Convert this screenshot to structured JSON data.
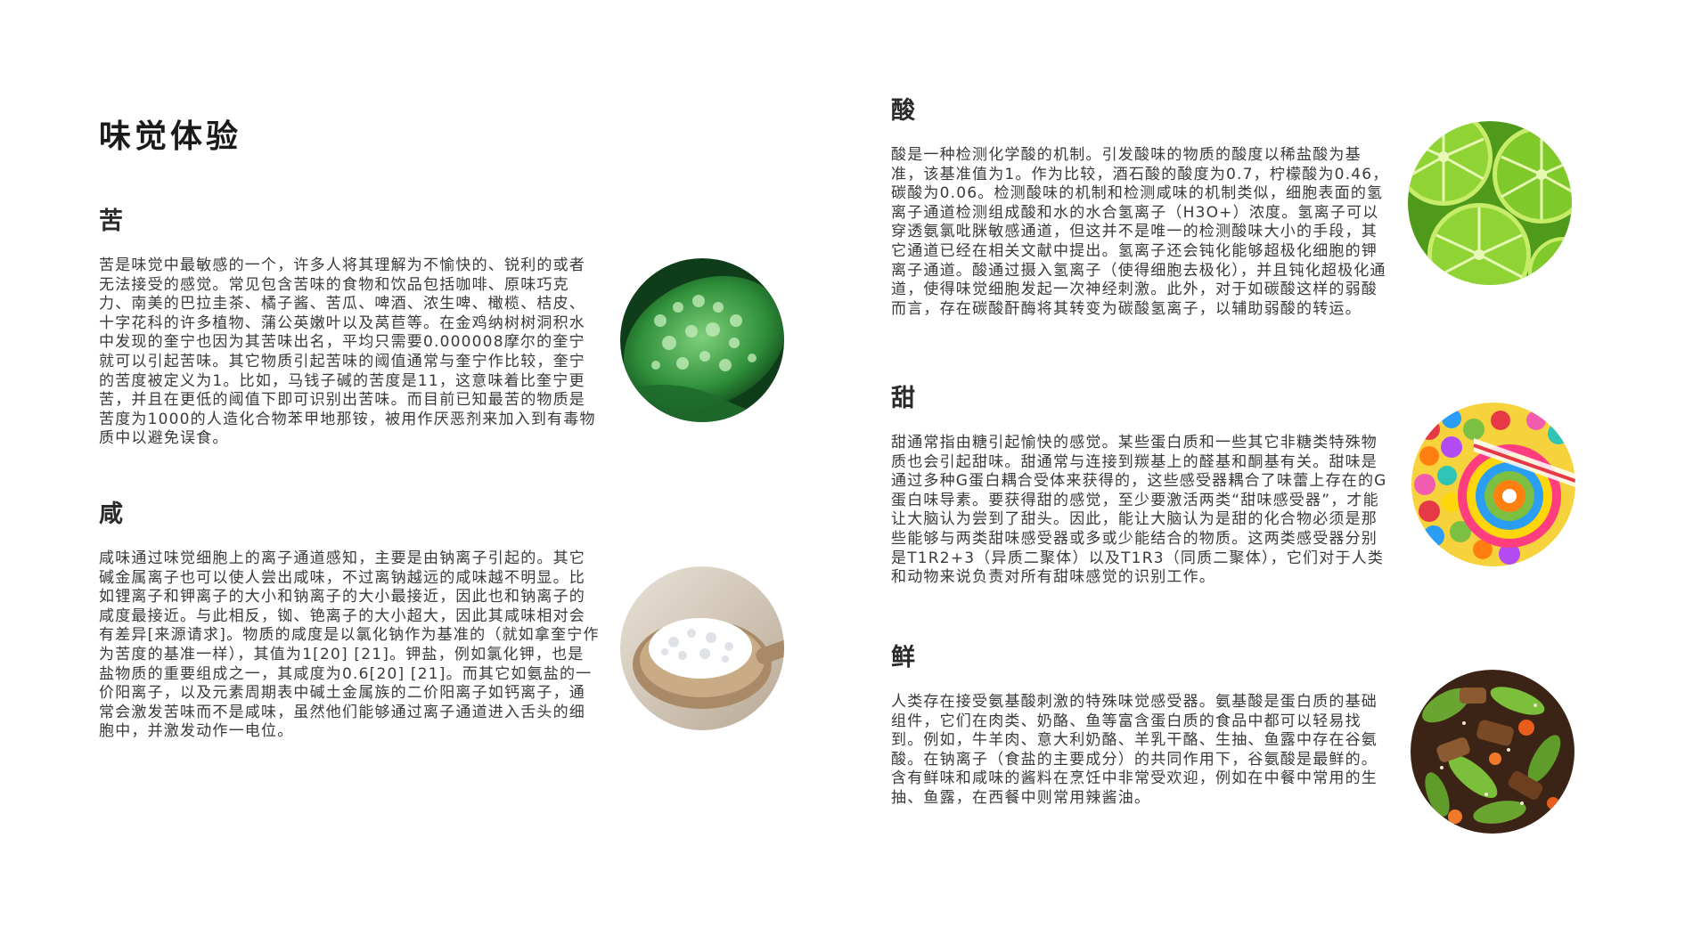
{
  "page": {
    "title": "味觉体验"
  },
  "sections": {
    "bitter": {
      "heading": "苦",
      "body": "苦是味觉中最敏感的一个，许多人将其理解为不愉快的、锐利的或者无法接受的感觉。常见包含苦味的食物和饮品包括咖啡、原味巧克力、南美的巴拉圭茶、橘子酱、苦瓜、啤酒、浓生啤、橄榄、桔皮、十字花科的许多植物、蒲公英嫩叶以及莴苣等。在金鸡纳树树洞积水中发现的奎宁也因为其苦味出名，平均只需要0.000008摩尔的奎宁就可以引起苦味。其它物质引起苦味的阈值通常与奎宁作比较，奎宁的苦度被定义为1。比如，马钱子碱的苦度是11，这意味着比奎宁更苦，并且在更低的阈值下即可识别出苦味。而目前已知最苦的物质是苦度为1000的人造化合物苯甲地那铵，被用作厌恶剂来加入到有毒物质中以避免误食。"
    },
    "salty": {
      "heading": "咸",
      "body": "咸味通过味觉细胞上的离子通道感知，主要是由钠离子引起的。其它碱金属离子也可以使人尝出咸味，不过离钠越远的咸味越不明显。比如锂离子和钾离子的大小和钠离子的大小最接近，因此也和钠离子的咸度最接近。与此相反，铷、铯离子的大小超大，因此其咸味相对会有差异[来源请求]。物质的咸度是以氯化钠作为基准的（就如拿奎宁作为苦度的基准一样），其值为1[20] [21]。钾盐，例如氯化钾，也是盐物质的重要组成之一，其咸度为0.6[20] [21]。而其它如氨盐的一价阳离子，以及元素周期表中碱土金属族的二价阳离子如钙离子，通常会激发苦味而不是咸味，虽然他们能够通过离子通道进入舌头的细胞中，并激发动作一电位。"
    },
    "sour": {
      "heading": "酸",
      "body": "酸是一种检测化学酸的机制。引发酸味的物质的酸度以稀盐酸为基准，该基准值为1。作为比较，酒石酸的酸度为0.7，柠檬酸为0.46，碳酸为0.06。检测酸味的机制和检测咸味的机制类似，细胞表面的氢离子通道检测组成酸和水的水合氢离子（H3O+）浓度。氢离子可以穿透氨氯吡脒敏感通道，但这并不是唯一的检测酸味大小的手段，其它通道已经在相关文献中提出。氢离子还会钝化能够超极化细胞的钾离子通道。酸通过摄入氢离子（使得细胞去极化），并且钝化超极化通道，使得味觉细胞发起一次神经刺激。此外，对于如碳酸这样的弱酸而言，存在碳酸酐酶将其转变为碳酸氢离子，以辅助弱酸的转运。"
    },
    "sweet": {
      "heading": "甜",
      "body": "甜通常指由糖引起愉快的感觉。某些蛋白质和一些其它非糖类特殊物质也会引起甜味。甜通常与连接到羰基上的醛基和酮基有关。甜味是通过多种G蛋白耦合受体来获得的，这些感受器耦合了味蕾上存在的G蛋白味导素。要获得甜的感觉，至少要激活两类“甜味感受器”，才能让大脑认为尝到了甜头。因此，能让大脑认为是甜的化合物必须是那些能够与两类甜味感受器或多或少能结合的物质。这两类感受器分别是T1R2+3（异质二聚体）以及T1R3（同质二聚体），它们对于人类和动物来说负责对所有甜味感觉的识别工作。"
    },
    "umami": {
      "heading": "鲜",
      "body": "人类存在接受氨基酸刺激的特殊味觉感受器。氨基酸是蛋白质的基础组件，它们在肉类、奶酪、鱼等富含蛋白质的食品中都可以轻易找到。例如，牛羊肉、意大利奶酪、羊乳干酪、生抽、鱼露中存在谷氨酸。在钠离子（食盐的主要成分）的共同作用下，谷氨酸是最鲜的。含有鲜味和咸味的酱料在烹饪中非常受欢迎，例如在中餐中常用的生抽、鱼露，在西餐中则常用辣酱油。"
    }
  },
  "images": {
    "bitter": "bitter-melon-photo",
    "salty": "salt-spoon-photo",
    "sour": "lime-slices-photo",
    "sweet": "candy-lollipop-photo",
    "umami": "stir-fry-photo"
  }
}
